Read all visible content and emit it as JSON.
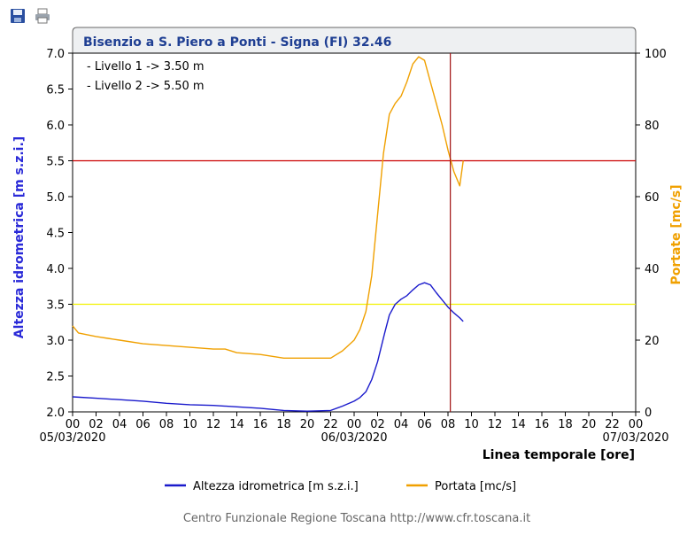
{
  "toolbar": {
    "save_icon": "floppy-disk-icon",
    "print_icon": "printer-icon"
  },
  "chart_data": {
    "type": "line",
    "title": "Bisenzio a S. Piero a Ponti - Signa (FI) 32.46",
    "annotations": [
      "- Livello 1 -> 3.50 m",
      "- Livello 2 -> 5.50 m"
    ],
    "ylabel_left": "Altezza idrometrica [m s.z.i.]",
    "ylabel_right": "Portate [mc/s]",
    "xlabel": "Linea temporale [ore]",
    "ylim_left": [
      2.0,
      7.0
    ],
    "ylim_right": [
      0,
      100
    ],
    "xlim_hours": [
      0,
      48
    ],
    "left_ticks": [
      "2.0",
      "2.5",
      "3.0",
      "3.5",
      "4.0",
      "4.5",
      "5.0",
      "5.5",
      "6.0",
      "6.5",
      "7.0"
    ],
    "right_ticks": [
      "0",
      "20",
      "40",
      "60",
      "80",
      "100"
    ],
    "x_tick_labels": [
      "00",
      "02",
      "04",
      "06",
      "08",
      "10",
      "12",
      "14",
      "16",
      "18",
      "20",
      "22",
      "00",
      "02",
      "04",
      "06",
      "08",
      "10",
      "12",
      "14",
      "16",
      "18",
      "20",
      "22",
      "00"
    ],
    "date_labels": [
      {
        "hour": 0,
        "label": "05/03/2020"
      },
      {
        "hour": 24,
        "label": "06/03/2020"
      },
      {
        "hour": 48,
        "label": "07/03/2020"
      }
    ],
    "thresholds": [
      {
        "label": "Livello 1",
        "value": 3.5,
        "color": "#f2f200"
      },
      {
        "label": "Livello 2",
        "value": 5.5,
        "color": "#cc0000"
      }
    ],
    "current_time_hour": 32.2,
    "series": [
      {
        "name": "Altezza idrometrica [m s.z.i.]",
        "axis": "left",
        "color": "#1a1acc",
        "x": [
          0,
          2,
          4,
          6,
          8,
          10,
          12,
          14,
          16,
          18,
          20,
          22,
          23,
          24,
          24.5,
          25,
          25.5,
          26,
          26.3,
          26.6,
          27,
          27.5,
          28,
          28.5,
          29,
          29.5,
          30,
          30.5,
          31,
          31.5,
          32,
          32.5,
          33,
          33.3
        ],
        "y": [
          2.21,
          2.19,
          2.17,
          2.15,
          2.12,
          2.1,
          2.09,
          2.07,
          2.05,
          2.02,
          2.01,
          2.02,
          2.08,
          2.15,
          2.2,
          2.28,
          2.45,
          2.7,
          2.9,
          3.1,
          3.35,
          3.5,
          3.57,
          3.62,
          3.7,
          3.77,
          3.8,
          3.77,
          3.66,
          3.56,
          3.46,
          3.38,
          3.31,
          3.26
        ]
      },
      {
        "name": "Portata [mc/s]",
        "axis": "right",
        "color": "#f0a000",
        "x": [
          0,
          0.5,
          2,
          3,
          4,
          6,
          8,
          10,
          12,
          13,
          14,
          16,
          18,
          20,
          22,
          23,
          24,
          24.5,
          25,
          25.5,
          26,
          26.5,
          27,
          27.5,
          28,
          28.5,
          29,
          29.5,
          30,
          30.5,
          31,
          31.5,
          32,
          32.5,
          33,
          33.3
        ],
        "y": [
          24,
          22,
          21,
          20.5,
          20,
          19,
          18.5,
          18,
          17.5,
          17.5,
          16.5,
          16,
          15,
          15,
          15,
          17,
          20,
          23,
          28,
          38,
          55,
          72,
          83,
          86,
          88,
          92,
          97,
          99,
          98,
          92,
          86,
          80,
          73,
          67,
          63,
          70
        ]
      }
    ],
    "legend": [
      "Altezza idrometrica [m s.z.i.]",
      "Portata [mc/s]"
    ],
    "legend_position": "bottom",
    "footer": "Centro Funzionale Regione Toscana http://www.cfr.toscana.it"
  }
}
